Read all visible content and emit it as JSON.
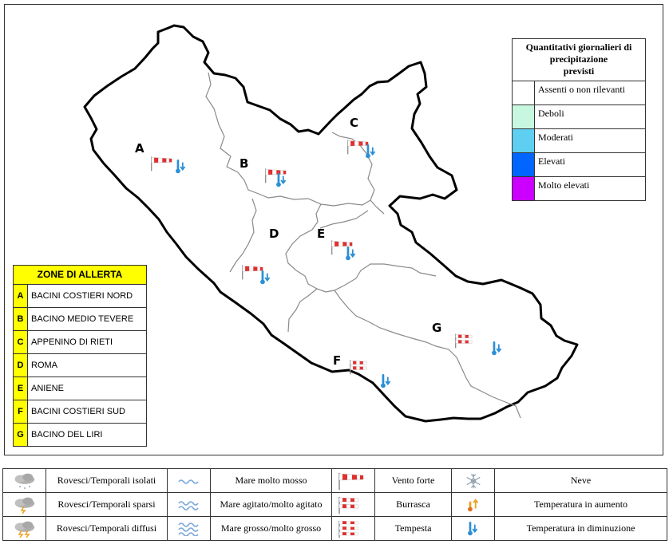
{
  "precipitation_legend": {
    "title_lines": [
      "Quantitativi giornalieri di",
      "precipitazione",
      "previsti"
    ],
    "items": [
      {
        "label": "Assenti o non rilevanti",
        "color": "#ffffff"
      },
      {
        "label": "Deboli",
        "color": "#c8f7e0"
      },
      {
        "label": "Moderati",
        "color": "#5ecff0"
      },
      {
        "label": "Elevati",
        "color": "#0066ff"
      },
      {
        "label": "Molto elevati",
        "color": "#cc00ff"
      }
    ]
  },
  "zones_legend": {
    "title": "ZONE DI ALLERTA",
    "highlight_color": "#ffff00",
    "zones": [
      {
        "letter": "A",
        "name": "BACINI COSTIERI NORD"
      },
      {
        "letter": "B",
        "name": "BACINO MEDIO TEVERE"
      },
      {
        "letter": "C",
        "name": "APPENINO DI RIETI"
      },
      {
        "letter": "D",
        "name": "ROMA"
      },
      {
        "letter": "E",
        "name": "ANIENE"
      },
      {
        "letter": "F",
        "name": "BACINI COSTIERI SUD"
      },
      {
        "letter": "G",
        "name": "BACINO DEL LIRI"
      }
    ]
  },
  "map": {
    "zone_labels": [
      "A",
      "B",
      "C",
      "D",
      "E",
      "F",
      "G"
    ],
    "zone_symbols": [
      {
        "zone": "A",
        "icons": [
          "vento-forte-icon",
          "temperatura-diminuzione-icon"
        ]
      },
      {
        "zone": "B",
        "icons": [
          "vento-forte-icon",
          "temperatura-diminuzione-icon"
        ]
      },
      {
        "zone": "C",
        "icons": [
          "vento-forte-icon",
          "temperatura-diminuzione-icon"
        ]
      },
      {
        "zone": "D",
        "icons": [
          "vento-forte-icon",
          "temperatura-diminuzione-icon"
        ]
      },
      {
        "zone": "E",
        "icons": [
          "vento-forte-icon",
          "temperatura-diminuzione-icon"
        ]
      },
      {
        "zone": "F",
        "icons": [
          "burrasca-icon",
          "temperatura-diminuzione-icon"
        ]
      },
      {
        "zone": "G",
        "icons": [
          "burrasca-icon",
          "temperatura-diminuzione-icon"
        ]
      }
    ]
  },
  "symbols_legend": {
    "rows": [
      [
        {
          "icon": "rovesci-isolati-icon",
          "label": "Rovesci/Temporali isolati"
        },
        {
          "icon": "mare-molto-mosso-icon",
          "label": "Mare molto mosso"
        },
        {
          "icon": "vento-forte-icon",
          "label": "Vento forte"
        },
        {
          "icon": "neve-icon",
          "label": "Neve"
        }
      ],
      [
        {
          "icon": "rovesci-sparsi-icon",
          "label": "Rovesci/Temporali sparsi"
        },
        {
          "icon": "mare-agitato-icon",
          "label": "Mare agitato/molto agitato"
        },
        {
          "icon": "burrasca-icon",
          "label": "Burrasca"
        },
        {
          "icon": "temperatura-aumento-icon",
          "label": "Temperatura in aumento"
        }
      ],
      [
        {
          "icon": "rovesci-diffusi-icon",
          "label": "Rovesci/Temporali diffusi"
        },
        {
          "icon": "mare-grosso-icon",
          "label": "Mare grosso/molto grosso"
        },
        {
          "icon": "tempesta-icon",
          "label": "Tempesta"
        },
        {
          "icon": "temperatura-diminuzione-icon",
          "label": "Temperatura in diminuzione"
        }
      ]
    ]
  }
}
